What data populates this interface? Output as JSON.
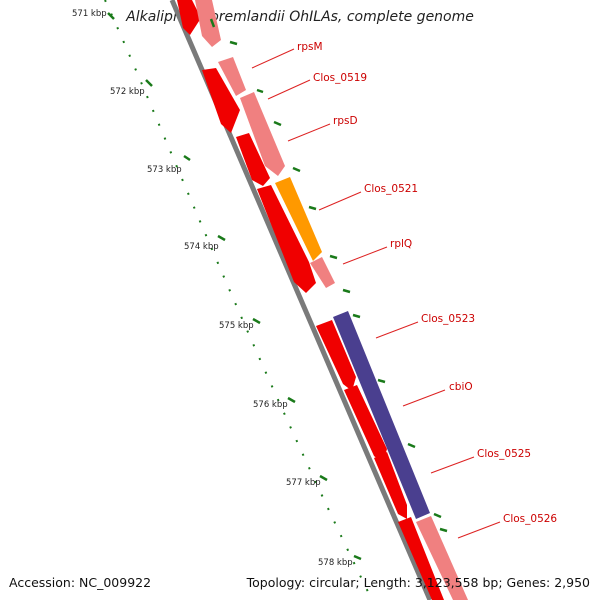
{
  "title": "Alkaliphilus oremlandii OhILAs, complete genome",
  "footer": {
    "accession": "Accession: NC_009922",
    "summary": "Topology: circular; Length: 3,123,558 bp; Genes: 2,950"
  },
  "scale": {
    "ticks": [
      "571 kbp",
      "572 kbp",
      "573 kbp",
      "574 kbp",
      "575 kbp",
      "576 kbp",
      "577 kbp",
      "578 kbp"
    ]
  },
  "genes": [
    {
      "label": "rpsM"
    },
    {
      "label": "Clos_0519"
    },
    {
      "label": "rpsD"
    },
    {
      "label": "Clos_0521"
    },
    {
      "label": "rplQ"
    },
    {
      "label": "Clos_0523"
    },
    {
      "label": "cbiO"
    },
    {
      "label": "Clos_0525"
    },
    {
      "label": "Clos_0526"
    }
  ],
  "colors": {
    "cds_strand": "#f00000",
    "gene_pink": "#f08080",
    "gene_orange": "#ff9900",
    "gene_purple": "#4a3f8f",
    "backbone": "#7a7a7a",
    "tick_green": "#1a7a1a",
    "label_red": "#cc0000"
  }
}
